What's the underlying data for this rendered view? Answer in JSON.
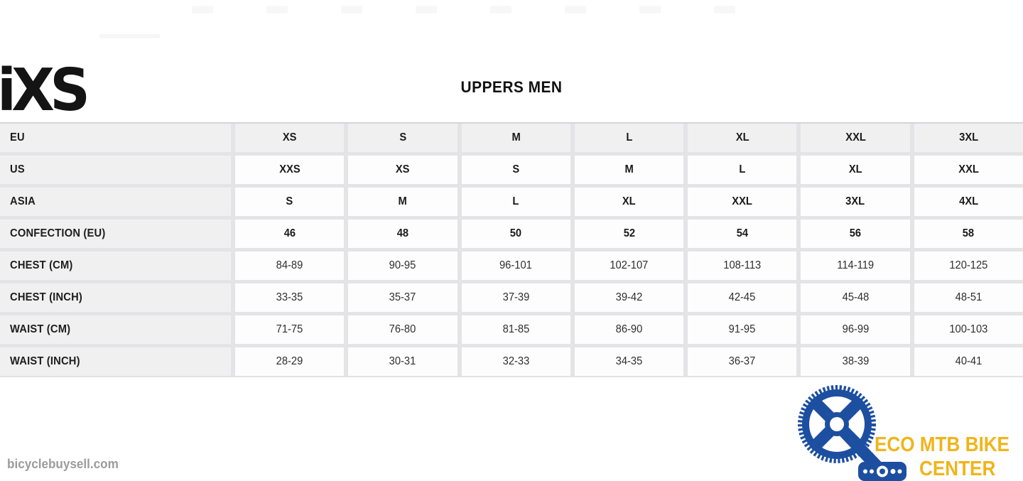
{
  "brand": {
    "logo_text": "iXS"
  },
  "title": "UPPERS MEN",
  "chart_data": {
    "type": "table",
    "title": "UPPERS MEN",
    "rows": [
      {
        "label": "EU",
        "style": "header",
        "values": [
          "XS",
          "S",
          "M",
          "L",
          "XL",
          "XXL",
          "3XL"
        ]
      },
      {
        "label": "US",
        "style": "size",
        "values": [
          "XXS",
          "XS",
          "S",
          "M",
          "L",
          "XL",
          "XXL"
        ]
      },
      {
        "label": "ASIA",
        "style": "size",
        "values": [
          "S",
          "M",
          "L",
          "XL",
          "XXL",
          "3XL",
          "4XL"
        ]
      },
      {
        "label": "CONFECTION (EU)",
        "style": "size",
        "values": [
          "46",
          "48",
          "50",
          "52",
          "54",
          "56",
          "58"
        ]
      },
      {
        "label": "CHEST (CM)",
        "style": "measure",
        "values": [
          "84-89",
          "90-95",
          "96-101",
          "102-107",
          "108-113",
          "114-119",
          "120-125"
        ]
      },
      {
        "label": "CHEST (INCH)",
        "style": "measure",
        "values": [
          "33-35",
          "35-37",
          "37-39",
          "39-42",
          "42-45",
          "45-48",
          "48-51"
        ]
      },
      {
        "label": "WAIST (CM)",
        "style": "measure",
        "values": [
          "71-75",
          "76-80",
          "81-85",
          "86-90",
          "91-95",
          "96-99",
          "100-103"
        ]
      },
      {
        "label": "WAIST (INCH)",
        "style": "measure",
        "values": [
          "28-29",
          "30-31",
          "32-33",
          "34-35",
          "36-37",
          "38-39",
          "40-41"
        ]
      }
    ]
  },
  "watermarks": {
    "site": "bicyclebuysell.com",
    "shop_line1": "ECO MTB BIKE",
    "shop_line2": "CENTER"
  },
  "colors": {
    "shop_blue": "#1d4fa0",
    "shop_yellow": "#f0b41c",
    "header_cell_grey": "#f1f0f1",
    "gutter_grey": "#e4e4e6"
  }
}
